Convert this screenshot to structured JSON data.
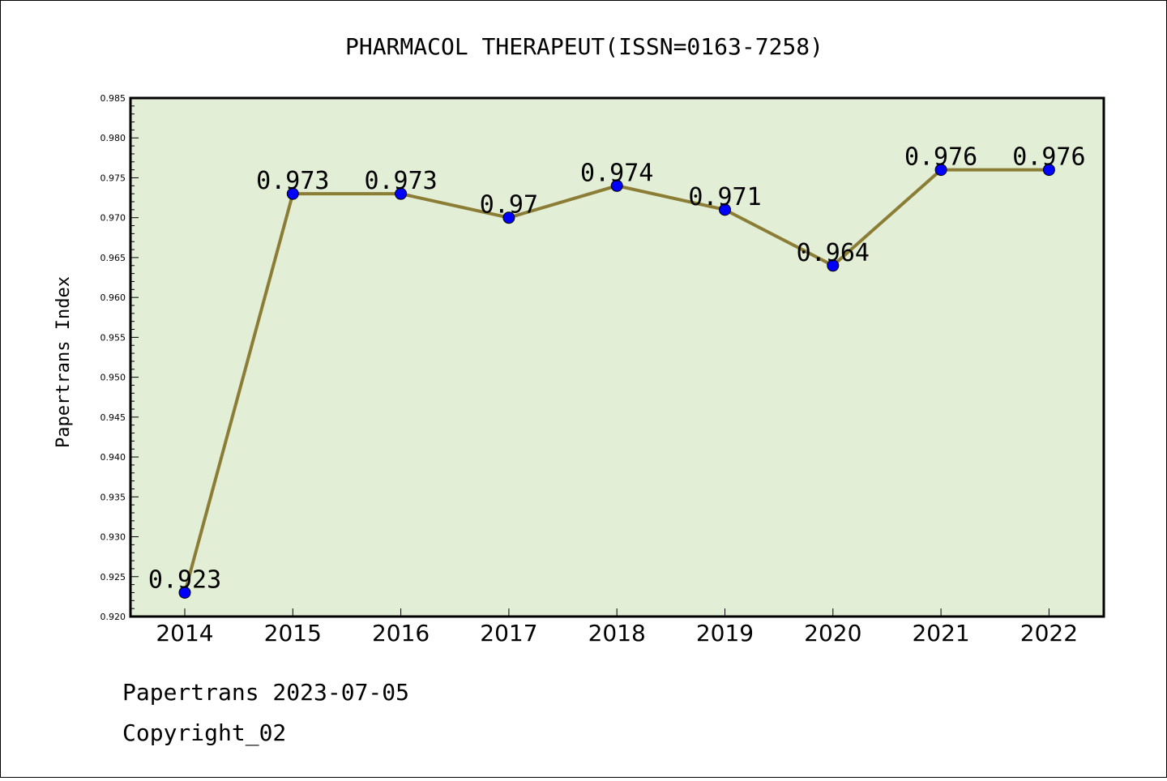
{
  "chart_data": {
    "type": "line",
    "title": "PHARMACOL THERAPEUT(ISSN=0163-7258)",
    "xlabel": "",
    "ylabel": "Papertrans Index",
    "categories": [
      "2014",
      "2015",
      "2016",
      "2017",
      "2018",
      "2019",
      "2020",
      "2021",
      "2022"
    ],
    "values": [
      0.923,
      0.973,
      0.973,
      0.97,
      0.974,
      0.971,
      0.964,
      0.976,
      0.976
    ],
    "value_labels": [
      "0.923",
      "0.973",
      "0.973",
      "0.97",
      "0.974",
      "0.971",
      "0.964",
      "0.976",
      "0.976"
    ],
    "ylim": [
      0.92,
      0.985
    ],
    "yticks": [
      "0.920",
      "0.925",
      "0.930",
      "0.935",
      "0.940",
      "0.945",
      "0.950",
      "0.955",
      "0.960",
      "0.965",
      "0.970",
      "0.975",
      "0.980",
      "0.985"
    ],
    "grid": false,
    "colors": {
      "plot_background": "#e2efd6",
      "line": "#8b7d35",
      "marker": "#0000ff"
    }
  },
  "footer": {
    "line1": "Papertrans 2023-07-05",
    "line2": "Copyright_02"
  }
}
